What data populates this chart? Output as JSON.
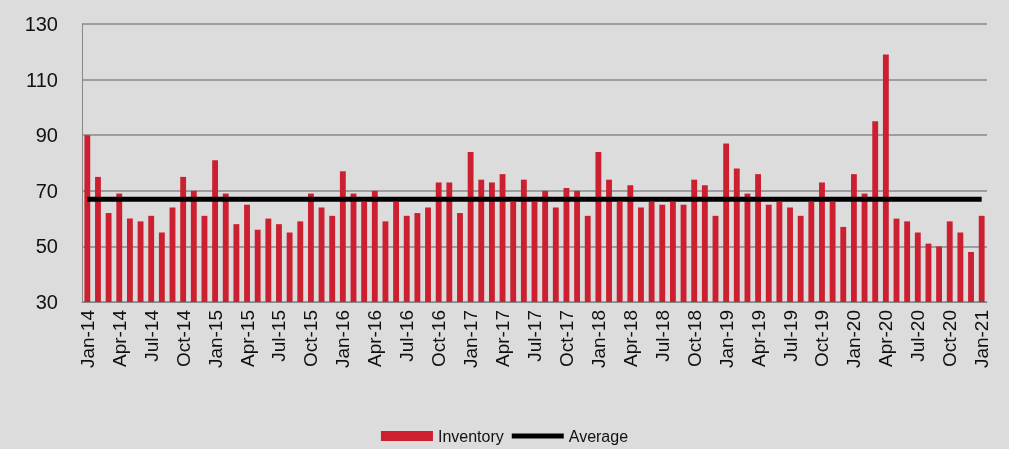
{
  "chart_data": {
    "type": "bar",
    "categories": [
      "Jan-14",
      null,
      null,
      "Apr-14",
      null,
      null,
      "Jul-14",
      null,
      null,
      "Oct-14",
      null,
      null,
      "Jan-15",
      null,
      null,
      "Apr-15",
      null,
      null,
      "Jul-15",
      null,
      null,
      "Oct-15",
      null,
      null,
      "Jan-16",
      null,
      null,
      "Apr-16",
      null,
      null,
      "Jul-16",
      null,
      null,
      "Oct-16",
      null,
      null,
      "Jan-17",
      null,
      null,
      "Apr-17",
      null,
      null,
      "Jul-17",
      null,
      null,
      "Oct-17",
      null,
      null,
      "Jan-18",
      null,
      null,
      "Apr-18",
      null,
      null,
      "Jul-18",
      null,
      null,
      "Oct-18",
      null,
      null,
      "Jan-19",
      null,
      null,
      "Apr-19",
      null,
      null,
      "Jul-19",
      null,
      null,
      "Oct-19",
      null,
      null,
      "Jan-20",
      null,
      null,
      "Apr-20",
      null,
      null,
      "Jul-20",
      null,
      null,
      "Oct-20",
      null,
      null,
      "Jan-21"
    ],
    "series": [
      {
        "name": "Inventory",
        "color": "#cc2030",
        "values": [
          90,
          75,
          62,
          69,
          60,
          59,
          61,
          55,
          64,
          75,
          70,
          61,
          81,
          69,
          58,
          65,
          56,
          60,
          58,
          55,
          59,
          69,
          64,
          61,
          77,
          69,
          66,
          70,
          59,
          66,
          61,
          62,
          64,
          73,
          73,
          62,
          84,
          74,
          73,
          76,
          66,
          74,
          66,
          70,
          64,
          71,
          70,
          61,
          84,
          74,
          66,
          72,
          64,
          66,
          65,
          66,
          65,
          74,
          72,
          61,
          87,
          78,
          69,
          76,
          65,
          66,
          64,
          61,
          66,
          73,
          66,
          57,
          76,
          69,
          95,
          119,
          60,
          59,
          55,
          51,
          50,
          59,
          55,
          48,
          61
        ]
      },
      {
        "name": "Average",
        "type": "line",
        "color": "#000000",
        "values": [
          67,
          67,
          67,
          67,
          67,
          67,
          67,
          67,
          67,
          67,
          67,
          67,
          67,
          67,
          67,
          67,
          67,
          67,
          67,
          67,
          67,
          67,
          67,
          67,
          67,
          67,
          67,
          67,
          67,
          67,
          67,
          67,
          67,
          67,
          67,
          67,
          67,
          67,
          67,
          67,
          67,
          67,
          67,
          67,
          67,
          67,
          67,
          67,
          67,
          67,
          67,
          67,
          67,
          67,
          67,
          67,
          67,
          67,
          67,
          67,
          67,
          67,
          67,
          67,
          67,
          67,
          67,
          67,
          67,
          67,
          67,
          67,
          67,
          67,
          67,
          67,
          67,
          67,
          67,
          67,
          67,
          67,
          67,
          67,
          67
        ]
      }
    ],
    "ylim": [
      30,
      130
    ],
    "yticks": [
      30,
      50,
      70,
      90,
      110,
      130
    ],
    "grid": "y",
    "legend": "bottom",
    "marker": "none",
    "line_style": "solid"
  }
}
